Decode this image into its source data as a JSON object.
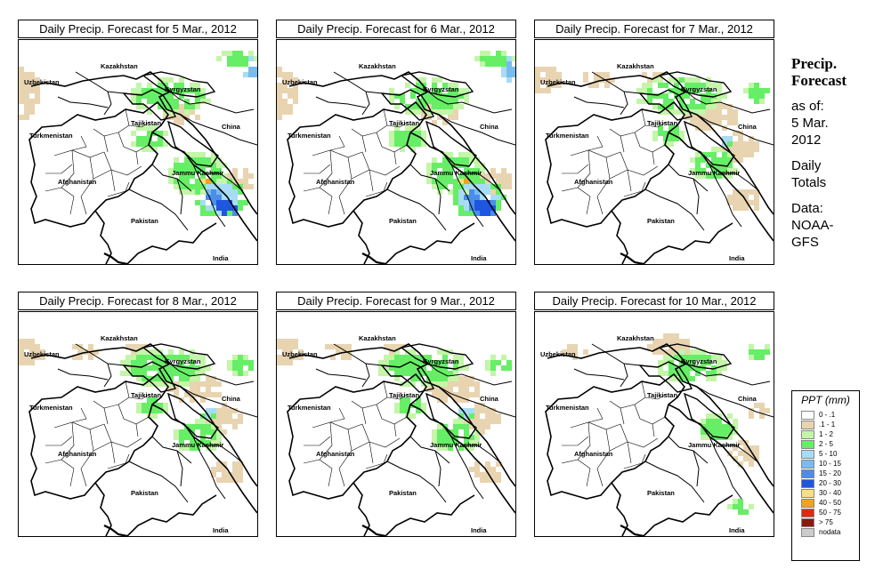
{
  "panels": [
    {
      "title": "Daily Precip. Forecast for  5 Mar., 2012",
      "precip_level": "high"
    },
    {
      "title": "Daily Precip. Forecast for  6 Mar., 2012",
      "precip_level": "high"
    },
    {
      "title": "Daily Precip. Forecast for  7 Mar., 2012",
      "precip_level": "medium"
    },
    {
      "title": "Daily Precip. Forecast for  8 Mar., 2012",
      "precip_level": "medium"
    },
    {
      "title": "Daily Precip. Forecast for  9 Mar., 2012",
      "precip_level": "medium"
    },
    {
      "title": "Daily Precip. Forecast for  10 Mar., 2012",
      "precip_level": "low"
    }
  ],
  "map_labels": {
    "kazakhstan": "Kazakhstan",
    "uzbekistan": "Uzbekistan",
    "kyrgyzstan": "Kyrgyzstan",
    "tajikistan": "Tajikistan",
    "turkmenistan": "Turkmenistan",
    "china": "China",
    "afghanistan": "Afghanistan",
    "jammu_kashmir": "Jammu Kashmir",
    "pakistan": "Pakistan",
    "india": "India"
  },
  "sidebar": {
    "title_line1": "Precip.",
    "title_line2": "Forecast",
    "asof_line1": "as of:",
    "asof_line2": "5 Mar.",
    "asof_line3": "2012",
    "type_line1": "Daily",
    "type_line2": "Totals",
    "data_line1": "Data:",
    "data_line2": "NOAA-",
    "data_line3": "GFS"
  },
  "legend": {
    "title": "PPT (mm)",
    "items": [
      {
        "label": "0 - .1",
        "color": "#ffffff"
      },
      {
        "label": ".1 - 1",
        "color": "#e8d4b0"
      },
      {
        "label": "1 - 2",
        "color": "#c4f5a8"
      },
      {
        "label": "2 - 5",
        "color": "#66ee66"
      },
      {
        "label": "5 - 10",
        "color": "#a8dcf5"
      },
      {
        "label": "10 - 15",
        "color": "#78bcee"
      },
      {
        "label": "15 - 20",
        "color": "#4a8eea"
      },
      {
        "label": "20 - 30",
        "color": "#1e56e0"
      },
      {
        "label": "30 - 40",
        "color": "#f7e080"
      },
      {
        "label": "40 - 50",
        "color": "#f5a020"
      },
      {
        "label": "50 - 75",
        "color": "#dd2a10"
      },
      {
        "label": "> 75",
        "color": "#8a1a10"
      },
      {
        "label": "nodata",
        "color": "#cccccc"
      }
    ]
  }
}
